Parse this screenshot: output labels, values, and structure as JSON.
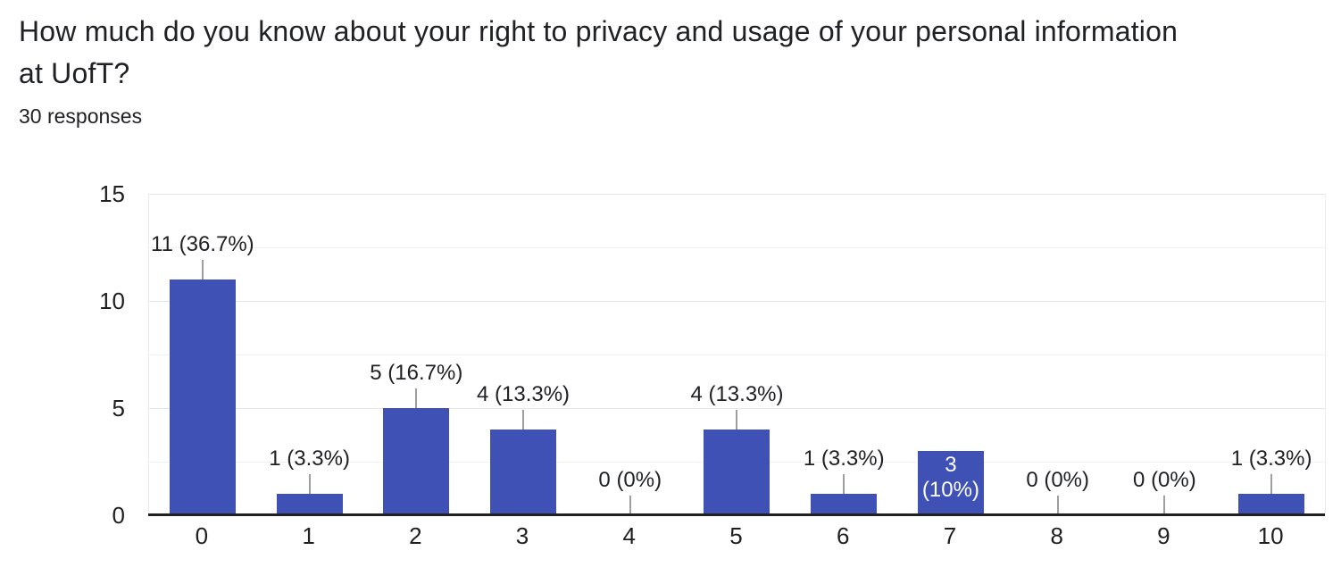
{
  "header": {
    "title_line1": "How much do you know about your right to privacy and usage of your personal information",
    "title_line2": "at UofT?",
    "responses": "30 responses"
  },
  "chart_data": {
    "type": "bar",
    "title": "How much do you know about your right to privacy and usage of your personal information at UofT?",
    "subtitle": "30 responses",
    "categories": [
      "0",
      "1",
      "2",
      "3",
      "4",
      "5",
      "6",
      "7",
      "8",
      "9",
      "10"
    ],
    "values": [
      11,
      1,
      5,
      4,
      0,
      4,
      1,
      3,
      0,
      0,
      1
    ],
    "bar_labels": [
      "11 (36.7%)",
      "1 (3.3%)",
      "5 (16.7%)",
      "4 (13.3%)",
      "0 (0%)",
      "4 (13.3%)",
      "1 (3.3%)",
      "3 (10%)",
      "0 (0%)",
      "0 (0%)",
      "1 (3.3%)"
    ],
    "inside_label": {
      "index": 7,
      "lines": [
        "3",
        "(10%)"
      ]
    },
    "xlabel": "",
    "ylabel": "",
    "y_ticks": [
      0,
      5,
      10,
      15
    ],
    "ylim": [
      0,
      15
    ],
    "grid": true,
    "legend": "none",
    "colors": {
      "bar": "#3f51b5",
      "bar_label_inside": "#ffffff",
      "text": "#202124",
      "stem": "#9e9e9e",
      "gridline_major": "#e6e6e6",
      "gridline_minor": "#f2f2f2",
      "baseline": "#212121",
      "background": "#ffffff"
    }
  }
}
